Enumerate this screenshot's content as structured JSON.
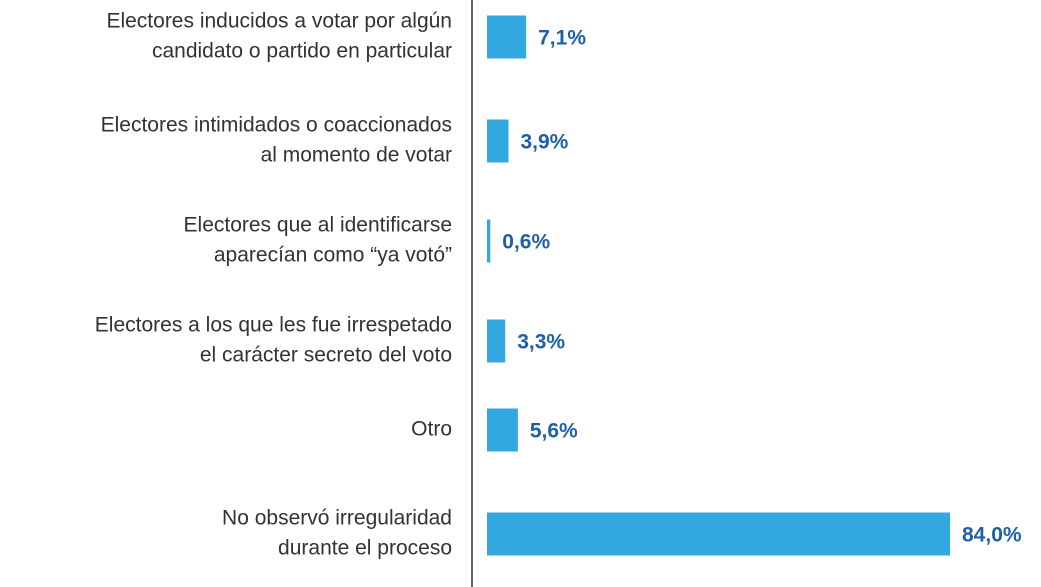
{
  "chart_data": {
    "type": "bar",
    "orientation": "horizontal",
    "categories": [
      [
        "Electores inducidos a votar por algún",
        "candidato o partido en particular"
      ],
      [
        "Electores intimidados o coaccionados",
        "al momento de votar"
      ],
      [
        "Electores que al identificarse",
        "aparecían como “ya votó”"
      ],
      [
        "Electores a los que les fue irrespetado",
        "el carácter secreto del voto"
      ],
      [
        "Otro"
      ],
      [
        "No observó irregularidad",
        "durante el proceso"
      ]
    ],
    "values": [
      7.1,
      3.9,
      0.6,
      3.3,
      5.6,
      84.0
    ],
    "value_labels": [
      "7,1%",
      "3,9%",
      "0,6%",
      "3,3%",
      "5,6%",
      "84,0%"
    ],
    "color": "#33a7e0",
    "label_color": "#1d5fa8"
  }
}
